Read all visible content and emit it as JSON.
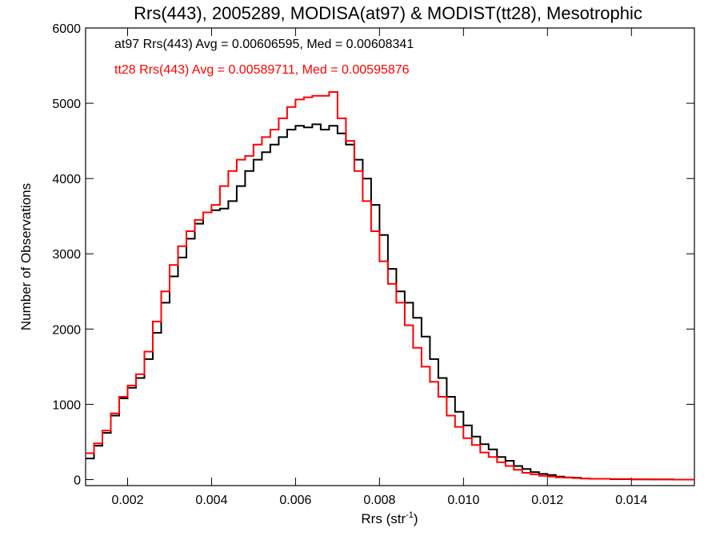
{
  "chart_data": {
    "type": "line",
    "title": "Rrs(443), 2005289, MODISA(at97) & MODIST(tt28), Mesotrophic",
    "xlabel": "Rrs (str",
    "xlabel_sup": "-1",
    "xlabel_end": ")",
    "ylabel": "Number of Observations",
    "xlim": [
      0.001,
      0.0155
    ],
    "ylim": [
      -80,
      6000
    ],
    "x_ticks": [
      0.002,
      0.004,
      0.006,
      0.008,
      0.01,
      0.012,
      0.014
    ],
    "x_tick_labels": [
      "0.002",
      "0.004",
      "0.006",
      "0.008",
      "0.010",
      "0.012",
      "0.014"
    ],
    "y_ticks": [
      0,
      1000,
      2000,
      3000,
      4000,
      5000,
      6000
    ],
    "y_tick_labels": [
      "0",
      "1000",
      "2000",
      "3000",
      "4000",
      "5000",
      "6000"
    ],
    "grid": false,
    "legend_position": "top-left",
    "step_style": "histogram-step",
    "series": [
      {
        "name": "at97 Rrs(443)",
        "legend_text": "at97 Rrs(443) Avg = 0.00606595, Med = 0.00608341",
        "color": "#000000",
        "x": [
          0.001,
          0.0012,
          0.0014,
          0.0016,
          0.0018,
          0.002,
          0.0022,
          0.0024,
          0.0026,
          0.0028,
          0.003,
          0.0032,
          0.0034,
          0.0036,
          0.0038,
          0.004,
          0.0042,
          0.0044,
          0.0046,
          0.0048,
          0.005,
          0.0052,
          0.0054,
          0.0056,
          0.0058,
          0.006,
          0.0062,
          0.0064,
          0.0066,
          0.0068,
          0.007,
          0.0072,
          0.0074,
          0.0076,
          0.0078,
          0.008,
          0.0082,
          0.0084,
          0.0086,
          0.0088,
          0.009,
          0.0092,
          0.0094,
          0.0096,
          0.0098,
          0.01,
          0.0102,
          0.0104,
          0.0106,
          0.0108,
          0.011,
          0.0112,
          0.0114,
          0.0116,
          0.0118,
          0.012,
          0.0122,
          0.0124,
          0.0126,
          0.0128,
          0.013,
          0.0135,
          0.014,
          0.0145,
          0.015,
          0.0155
        ],
        "values": [
          280,
          450,
          620,
          850,
          1080,
          1220,
          1350,
          1600,
          1950,
          2350,
          2700,
          2950,
          3200,
          3400,
          3550,
          3580,
          3600,
          3700,
          3900,
          4100,
          4250,
          4350,
          4450,
          4550,
          4650,
          4700,
          4680,
          4720,
          4650,
          4700,
          4600,
          4450,
          4250,
          4000,
          3650,
          3250,
          2800,
          2500,
          2350,
          2150,
          1900,
          1600,
          1350,
          1100,
          900,
          720,
          570,
          470,
          400,
          300,
          250,
          180,
          140,
          100,
          75,
          60,
          40,
          30,
          25,
          15,
          10,
          5,
          3,
          2,
          0,
          0
        ]
      },
      {
        "name": "tt28 Rrs(443)",
        "legend_text": "tt28 Rrs(443) Avg = 0.00589711, Med = 0.00595876",
        "color": "#ff0000",
        "x": [
          0.001,
          0.0012,
          0.0014,
          0.0016,
          0.0018,
          0.002,
          0.0022,
          0.0024,
          0.0026,
          0.0028,
          0.003,
          0.0032,
          0.0034,
          0.0036,
          0.0038,
          0.004,
          0.0042,
          0.0044,
          0.0046,
          0.0048,
          0.005,
          0.0052,
          0.0054,
          0.0056,
          0.0058,
          0.006,
          0.0062,
          0.0064,
          0.0066,
          0.0068,
          0.007,
          0.0072,
          0.0074,
          0.0076,
          0.0078,
          0.008,
          0.0082,
          0.0084,
          0.0086,
          0.0088,
          0.009,
          0.0092,
          0.0094,
          0.0096,
          0.0098,
          0.01,
          0.0102,
          0.0104,
          0.0106,
          0.0108,
          0.011,
          0.0112,
          0.0114,
          0.0116,
          0.0118,
          0.012,
          0.0122,
          0.0124,
          0.0126,
          0.0128,
          0.013,
          0.0135,
          0.014,
          0.0145,
          0.015,
          0.0155
        ],
        "values": [
          350,
          480,
          650,
          880,
          1100,
          1250,
          1400,
          1700,
          2100,
          2500,
          2850,
          3100,
          3300,
          3450,
          3550,
          3650,
          3900,
          4100,
          4250,
          4300,
          4450,
          4550,
          4650,
          4800,
          4950,
          5050,
          5080,
          5100,
          5100,
          5150,
          4800,
          4500,
          4100,
          3700,
          3300,
          2900,
          2600,
          2350,
          2050,
          1750,
          1500,
          1300,
          1100,
          850,
          700,
          550,
          460,
          360,
          300,
          230,
          180,
          130,
          90,
          70,
          50,
          40,
          30,
          25,
          20,
          15,
          10,
          8,
          5,
          3,
          0,
          0
        ]
      }
    ]
  }
}
